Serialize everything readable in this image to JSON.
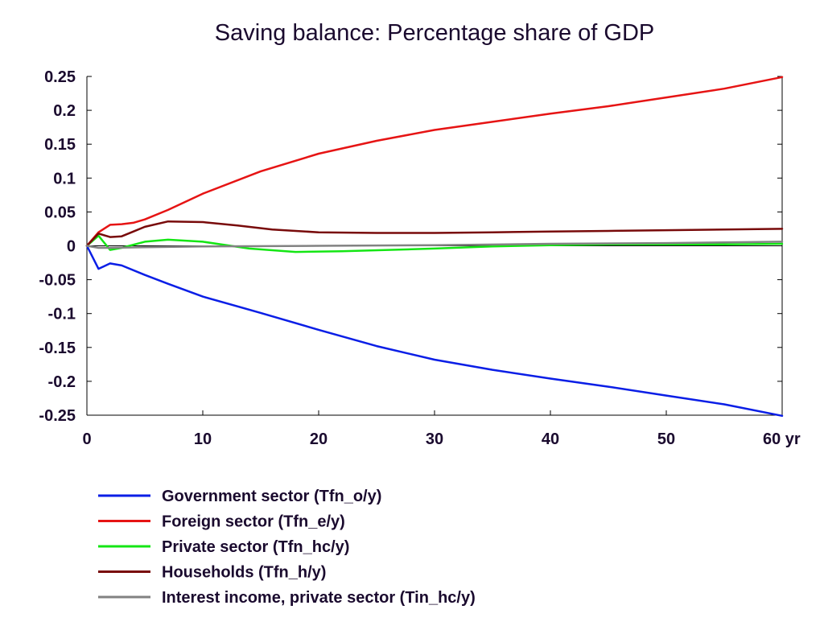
{
  "chart_data": {
    "type": "line",
    "title": "Saving balance: Percentage share of GDP",
    "xlabel": "",
    "ylabel": "",
    "xlim": [
      0,
      60
    ],
    "ylim": [
      -0.25,
      0.25
    ],
    "x_ticks": [
      0,
      10,
      20,
      30,
      40,
      50,
      60
    ],
    "x_tick_labels": [
      "0",
      "10",
      "20",
      "30",
      "40",
      "50",
      "60 yr"
    ],
    "y_ticks": [
      0.25,
      0.2,
      0.15,
      0.1,
      0.05,
      0,
      -0.05,
      -0.1,
      -0.15,
      -0.2,
      -0.25
    ],
    "y_tick_labels": [
      "0.25",
      "0.2",
      "0.15",
      "0.1",
      "0.05",
      "0",
      "-0.05",
      "-0.1",
      "-0.15",
      "-0.2",
      "-0.25"
    ],
    "grid": false,
    "legend_position": "bottom",
    "series": [
      {
        "name": "Government sector (Tfn_o/y)",
        "color": "#0a1ee6",
        "x": [
          0,
          1,
          2,
          3,
          5,
          7,
          10,
          15,
          20,
          25,
          30,
          35,
          40,
          45,
          50,
          55,
          60
        ],
        "y": [
          0,
          -0.034,
          -0.026,
          -0.029,
          -0.043,
          -0.056,
          -0.075,
          -0.099,
          -0.124,
          -0.148,
          -0.168,
          -0.183,
          -0.196,
          -0.208,
          -0.221,
          -0.234,
          -0.251
        ]
      },
      {
        "name": "Foreign sector (Tfn_e/y)",
        "color": "#e61414",
        "x": [
          0,
          1,
          2,
          3,
          4,
          5,
          7,
          10,
          15,
          20,
          25,
          30,
          35,
          40,
          45,
          50,
          55,
          60
        ],
        "y": [
          0,
          0.02,
          0.031,
          0.032,
          0.034,
          0.039,
          0.053,
          0.077,
          0.11,
          0.136,
          0.155,
          0.171,
          0.183,
          0.195,
          0.206,
          0.219,
          0.232,
          0.249
        ]
      },
      {
        "name": "Private sector (Tfn_hc/y)",
        "color": "#14e614",
        "x": [
          0,
          1,
          2,
          3,
          5,
          7,
          10,
          14,
          18,
          22,
          26,
          30,
          35,
          40,
          45,
          50,
          55,
          60
        ],
        "y": [
          0,
          0.015,
          -0.006,
          -0.003,
          0.006,
          0.009,
          0.006,
          -0.004,
          -0.009,
          -0.008,
          -0.006,
          -0.004,
          -0.001,
          0.001,
          0.002,
          0.002,
          0.002,
          0.003
        ]
      },
      {
        "name": "Households (Tfn_h/y)",
        "color": "#780a0a",
        "x": [
          0,
          1,
          2,
          3,
          4,
          5,
          7,
          10,
          13,
          16,
          20,
          25,
          30,
          35,
          40,
          45,
          50,
          55,
          60
        ],
        "y": [
          0,
          0.018,
          0.013,
          0.014,
          0.021,
          0.028,
          0.036,
          0.035,
          0.03,
          0.024,
          0.02,
          0.019,
          0.019,
          0.02,
          0.021,
          0.022,
          0.023,
          0.024,
          0.025
        ]
      },
      {
        "name": "Interest income, private sector (Tin_hc/y)",
        "color": "#828282",
        "x": [
          0,
          1,
          2,
          5,
          10,
          20,
          30,
          40,
          50,
          60
        ],
        "y": [
          0,
          -0.003,
          -0.003,
          -0.002,
          -0.001,
          0.0,
          0.001,
          0.003,
          0.004,
          0.006
        ]
      }
    ]
  }
}
